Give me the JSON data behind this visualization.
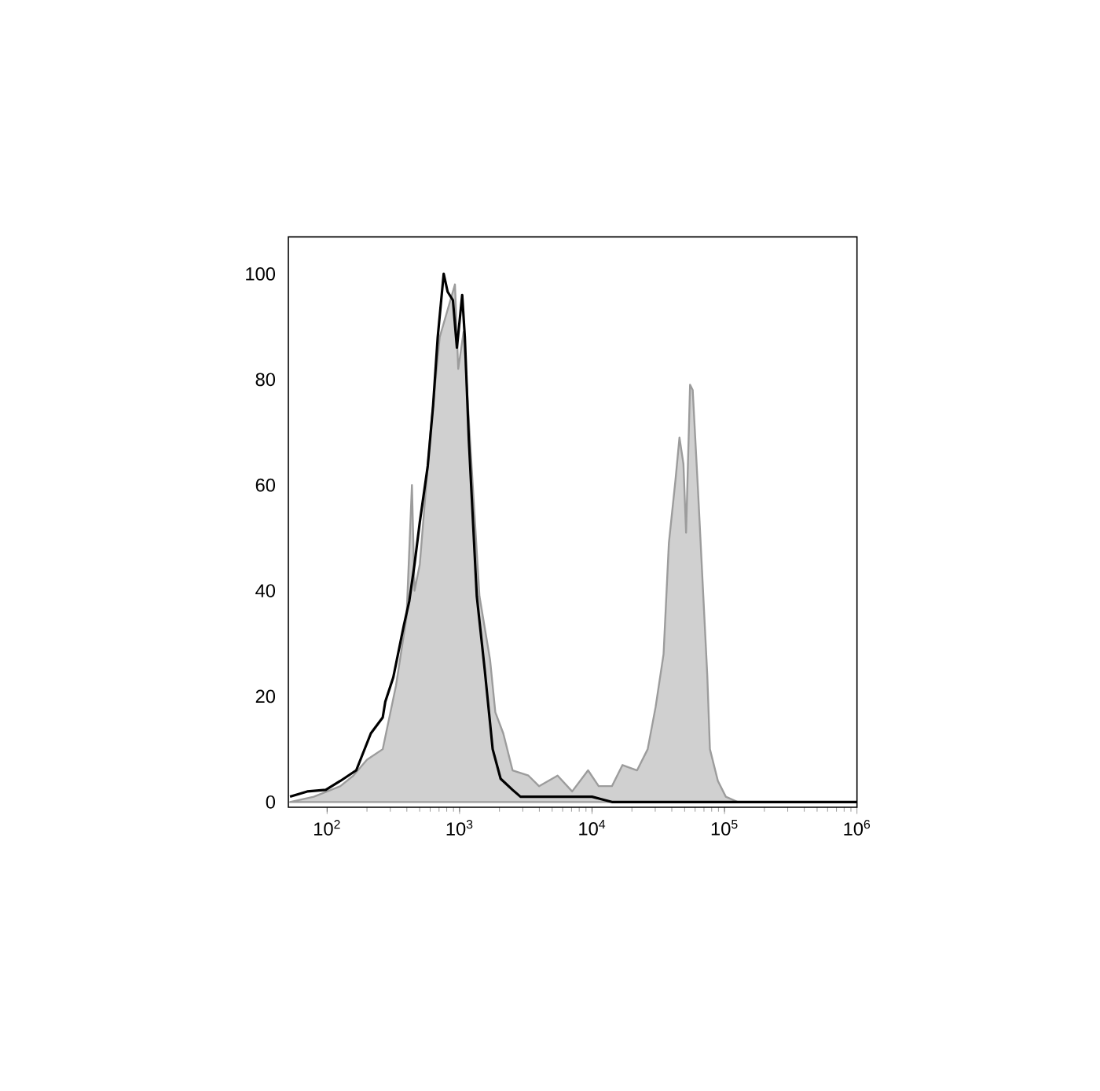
{
  "chart_data": {
    "type": "area",
    "log": "x",
    "xlim": [
      51,
      1000000
    ],
    "ylim": [
      -1,
      107
    ],
    "xticks": [
      {
        "value": 100,
        "label": "10$^{2}$"
      },
      {
        "value": 1000,
        "label": "10$^{3}$"
      },
      {
        "value": 10000,
        "label": "10$^{4}$"
      },
      {
        "value": 100000,
        "label": "10$^{5}$"
      },
      {
        "value": 1000000,
        "label": "10$^{6}$"
      }
    ],
    "yticks": [
      0,
      20,
      40,
      60,
      80,
      100
    ],
    "series": [
      {
        "color": "#d0d0d0",
        "x": [
          52.5,
          79.4,
          126,
          158,
          200,
          263,
          331,
          398,
          437,
          457,
          501,
          603,
          708,
          923,
          977,
          1072,
          1230,
          1413,
          1698,
          1862,
          2138,
          2512,
          3311,
          3981,
          5495,
          7079,
          9333,
          11220,
          14125,
          16982,
          21878,
          26303,
          30200,
          34674,
          38019,
          42658,
          45709,
          48978,
          51286,
          54954,
          57544,
          63096,
          69183,
          74131,
          77625,
          89125,
          102329,
          125893,
          1000000
        ],
        "values": [
          0,
          1,
          3,
          5,
          8,
          10,
          22,
          35,
          60,
          40,
          45,
          70,
          88,
          98,
          82,
          89,
          64,
          39,
          27,
          17,
          13,
          6,
          5,
          3,
          5,
          2,
          6,
          3,
          3,
          7,
          6,
          10,
          18,
          28,
          49,
          61,
          69,
          64,
          51,
          79,
          78,
          59,
          39,
          24,
          10,
          4,
          1,
          0,
          0
        ]
      },
      {
        "type": "line",
        "color": "#000000",
        "x": [
          52.5,
          70.8,
          97.7,
          126,
          166,
          214,
          263,
          275,
          316,
          380,
          417,
          457,
          501,
          575,
          631,
          684,
          759,
          813,
          891,
          955,
          1047,
          1096,
          1175,
          1349,
          1549,
          1778,
          2042,
          2512,
          2884,
          5012,
          10000,
          14125,
          100000,
          1000000
        ],
        "values": [
          1,
          2,
          2.3,
          4,
          6,
          13,
          16,
          19,
          23.6,
          33.5,
          38,
          45,
          53,
          63.6,
          75,
          88,
          100,
          96.6,
          95,
          86,
          96,
          88,
          68.5,
          39,
          25,
          10,
          4.4,
          2.3,
          1,
          1,
          1,
          0,
          0,
          0
        ]
      }
    ]
  }
}
